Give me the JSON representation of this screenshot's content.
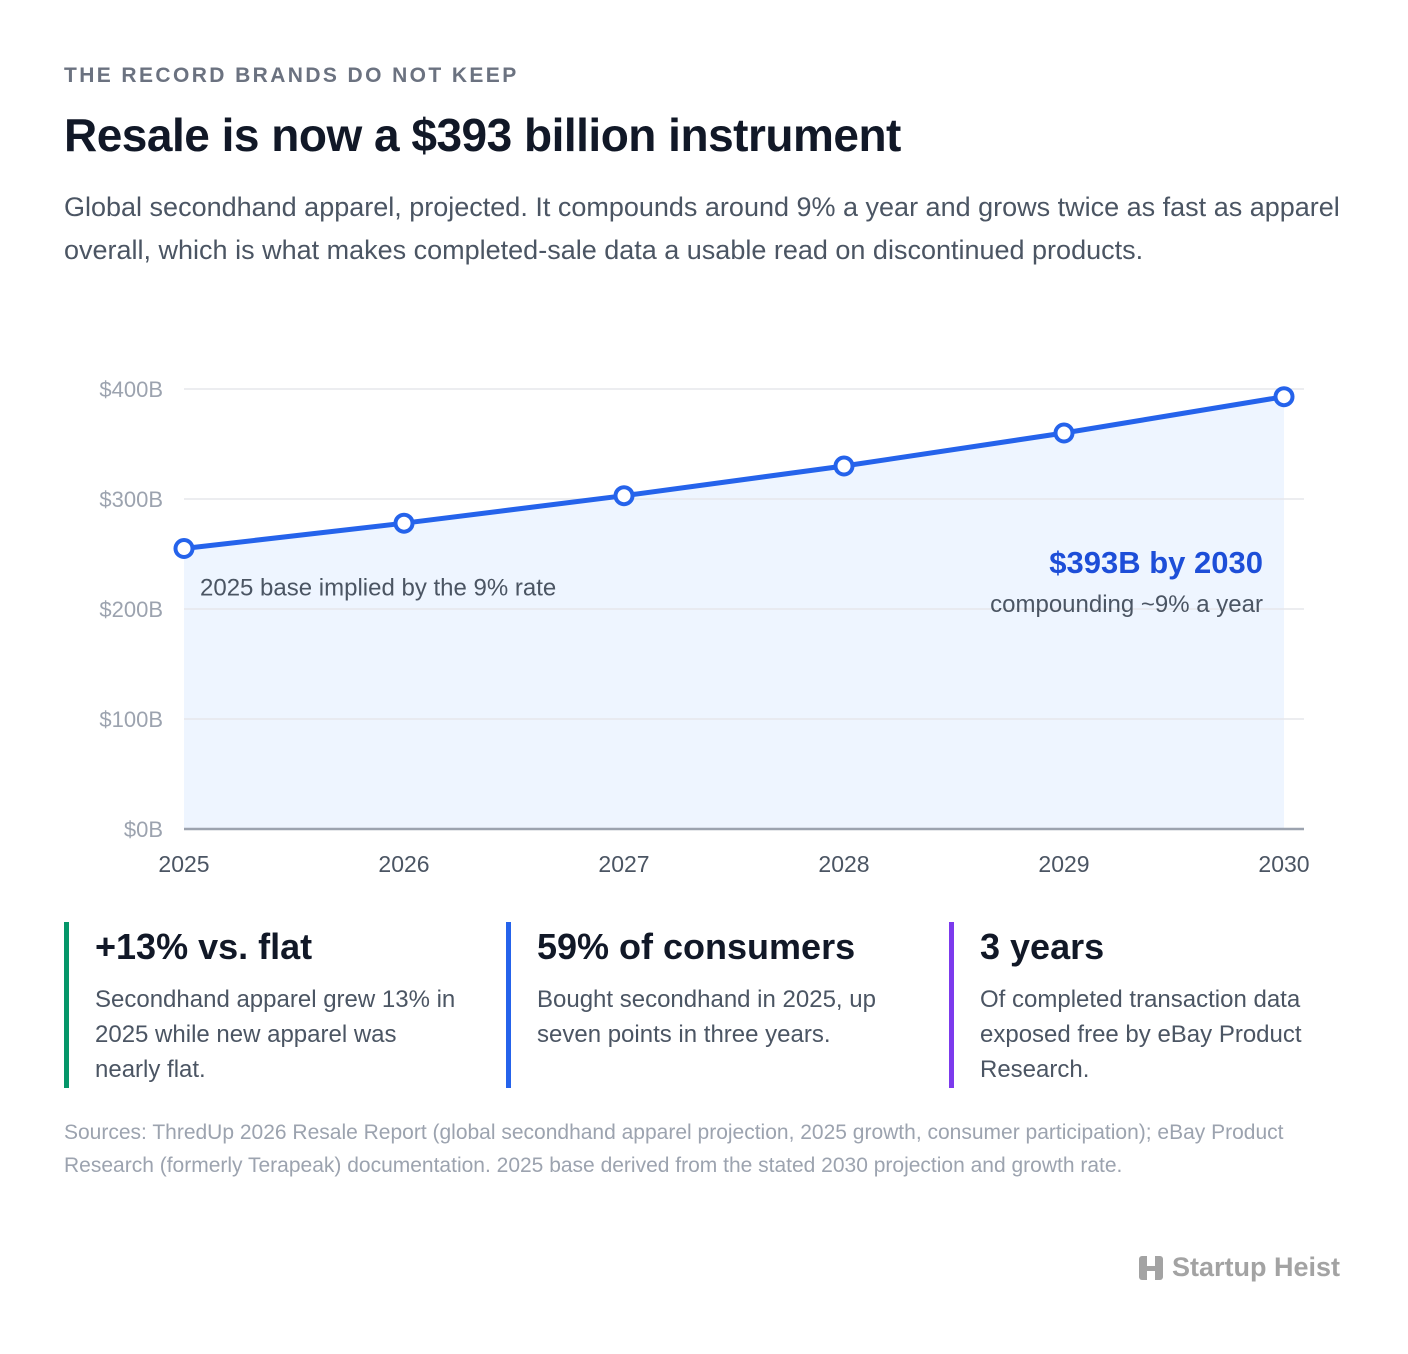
{
  "header": {
    "eyebrow": "THE RECORD BRANDS DO NOT KEEP",
    "title": "Resale is now a $393 billion instrument",
    "subtitle": "Global secondhand apparel, projected. It compounds around 9% a year and grows twice as fast as apparel overall, which is what makes completed-sale data a usable read on discontinued products."
  },
  "chart_data": {
    "type": "area",
    "x": [
      "2025",
      "2026",
      "2027",
      "2028",
      "2029",
      "2030"
    ],
    "series": [
      {
        "values": [
          255,
          278,
          303,
          330,
          360,
          393
        ]
      }
    ],
    "ylim": [
      0,
      400
    ],
    "yticks": [
      0,
      100,
      200,
      300,
      400
    ],
    "ytick_labels": [
      "$0B",
      "$100B",
      "$200B",
      "$300B",
      "$400B"
    ],
    "grid": true,
    "annotations": {
      "start_note": "2025 base implied by the 9% rate",
      "end_headline": "$393B by 2030",
      "end_note": "compounding ~9% a year"
    },
    "colors": {
      "line": "#2563eb",
      "fill": "#eef5ff",
      "grid": "#e5e7eb",
      "axis": "#9ca3af"
    }
  },
  "stats": [
    {
      "value": "+13% vs. flat",
      "desc": "Secondhand apparel grew 13% in 2025 while new apparel was nearly flat.",
      "color": "#059669"
    },
    {
      "value": "59% of consumers",
      "desc": "Bought secondhand in 2025, up seven points in three years.",
      "color": "#2563eb"
    },
    {
      "value": "3 years",
      "desc": "Of completed transaction data exposed free by eBay Product Research.",
      "color": "#7c3aed"
    }
  ],
  "sources": "Sources: ThredUp 2026 Resale Report (global secondhand apparel projection, 2025 growth, consumer participation); eBay Product Research (formerly Terapeak) documentation. 2025 base derived from the stated 2030 projection and growth rate.",
  "brand": {
    "name": "Startup Heist",
    "icon": "building-icon"
  }
}
